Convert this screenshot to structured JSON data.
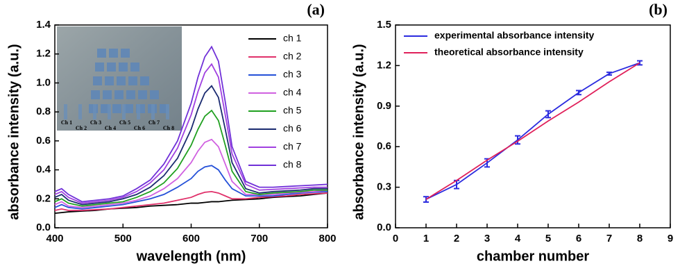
{
  "chart_data": [
    {
      "type": "line",
      "panel_label": "(a)",
      "x_label": "wavelength (nm)",
      "y_label": "absorbance intensity (a.u.)",
      "xlim": [
        400,
        800
      ],
      "ylim": [
        0,
        1.4
      ],
      "xticks": [
        400,
        500,
        600,
        700,
        800
      ],
      "yticks": [
        {
          "value": 0,
          "label": "0.0"
        },
        {
          "value": 0.2,
          "label": "0.2"
        },
        {
          "value": 0.4,
          "label": "0.4"
        },
        {
          "value": 0.6,
          "label": "0.6"
        },
        {
          "value": 0.8,
          "label": "0.8"
        },
        {
          "value": 1,
          "label": "1.0"
        },
        {
          "value": 1.2,
          "label": "1.2"
        },
        {
          "value": 1.4,
          "label": "1.4"
        }
      ],
      "inset_labels": [
        "Ch 1",
        "Ch 2",
        "Ch 3",
        "Ch 4",
        "Ch 5",
        "Ch 6",
        "Ch 7",
        "Ch 8"
      ],
      "x": [
        400,
        410,
        420,
        440,
        460,
        480,
        500,
        520,
        540,
        560,
        580,
        600,
        610,
        620,
        630,
        640,
        650,
        660,
        680,
        700,
        720,
        740,
        760,
        780,
        800
      ],
      "series": [
        {
          "name": "ch 1",
          "color": "#000000",
          "values": [
            0.1,
            0.105,
            0.11,
            0.115,
            0.12,
            0.13,
            0.135,
            0.14,
            0.15,
            0.155,
            0.16,
            0.17,
            0.17,
            0.175,
            0.18,
            0.18,
            0.185,
            0.19,
            0.195,
            0.2,
            0.21,
            0.215,
            0.22,
            0.23,
            0.24
          ]
        },
        {
          "name": "ch 2",
          "color": "#e0306a",
          "values": [
            0.12,
            0.13,
            0.12,
            0.12,
            0.125,
            0.13,
            0.14,
            0.15,
            0.16,
            0.17,
            0.19,
            0.21,
            0.23,
            0.245,
            0.25,
            0.24,
            0.22,
            0.2,
            0.2,
            0.21,
            0.215,
            0.22,
            0.23,
            0.235,
            0.24
          ]
        },
        {
          "name": "ch 3",
          "color": "#2450d8",
          "values": [
            0.14,
            0.16,
            0.14,
            0.13,
            0.14,
            0.15,
            0.16,
            0.18,
            0.2,
            0.23,
            0.28,
            0.34,
            0.39,
            0.42,
            0.43,
            0.4,
            0.33,
            0.27,
            0.22,
            0.22,
            0.22,
            0.23,
            0.24,
            0.245,
            0.25
          ]
        },
        {
          "name": "ch 4",
          "color": "#d060e0",
          "values": [
            0.16,
            0.18,
            0.15,
            0.14,
            0.15,
            0.16,
            0.17,
            0.19,
            0.22,
            0.27,
            0.34,
            0.45,
            0.53,
            0.59,
            0.61,
            0.56,
            0.44,
            0.32,
            0.23,
            0.23,
            0.23,
            0.24,
            0.245,
            0.25,
            0.26
          ]
        },
        {
          "name": "ch 5",
          "color": "#20a020",
          "values": [
            0.18,
            0.2,
            0.17,
            0.15,
            0.16,
            0.17,
            0.18,
            0.21,
            0.25,
            0.31,
            0.41,
            0.57,
            0.68,
            0.77,
            0.81,
            0.74,
            0.57,
            0.39,
            0.25,
            0.23,
            0.24,
            0.245,
            0.25,
            0.26,
            0.26
          ]
        },
        {
          "name": "ch 6",
          "color": "#1a2a70",
          "values": [
            0.21,
            0.23,
            0.19,
            0.16,
            0.17,
            0.18,
            0.2,
            0.23,
            0.28,
            0.36,
            0.48,
            0.68,
            0.82,
            0.93,
            0.98,
            0.9,
            0.68,
            0.45,
            0.27,
            0.24,
            0.25,
            0.255,
            0.26,
            0.27,
            0.27
          ]
        },
        {
          "name": "ch 7",
          "color": "#a040e0",
          "values": [
            0.23,
            0.25,
            0.21,
            0.17,
            0.18,
            0.19,
            0.21,
            0.25,
            0.31,
            0.4,
            0.55,
            0.78,
            0.94,
            1.07,
            1.13,
            1.04,
            0.78,
            0.51,
            0.3,
            0.26,
            0.265,
            0.27,
            0.275,
            0.28,
            0.28
          ]
        },
        {
          "name": "ch 8",
          "color": "#7030d8",
          "values": [
            0.25,
            0.27,
            0.23,
            0.18,
            0.19,
            0.2,
            0.22,
            0.27,
            0.33,
            0.44,
            0.6,
            0.86,
            1.04,
            1.18,
            1.25,
            1.15,
            0.87,
            0.56,
            0.32,
            0.28,
            0.28,
            0.285,
            0.29,
            0.295,
            0.3
          ]
        }
      ]
    },
    {
      "type": "line",
      "panel_label": "(b)",
      "x_label": "chamber number",
      "y_label": "absorbance intensity (a.u.)",
      "xlim": [
        0,
        9
      ],
      "ylim": [
        0,
        1.5
      ],
      "xticks": [
        0,
        1,
        2,
        3,
        4,
        5,
        6,
        7,
        8,
        9
      ],
      "yticks": [
        {
          "value": 0,
          "label": "0.0"
        },
        {
          "value": 0.3,
          "label": "0.3"
        },
        {
          "value": 0.6,
          "label": "0.6"
        },
        {
          "value": 0.9,
          "label": "0.9"
        },
        {
          "value": 1.2,
          "label": "1.2"
        },
        {
          "value": 1.5,
          "label": "1.5"
        }
      ],
      "x": [
        1,
        2,
        3,
        4,
        5,
        6,
        7,
        8
      ],
      "series": [
        {
          "name": "experimental absorbance intensity",
          "color": "#2b2bdf",
          "values": [
            0.21,
            0.32,
            0.48,
            0.65,
            0.84,
            1.0,
            1.14,
            1.22
          ],
          "errors": [
            0.02,
            0.03,
            0.03,
            0.03,
            0.025,
            0.015,
            0.01,
            0.015
          ]
        },
        {
          "name": "theoretical absorbance intensity",
          "color": "#e0205a",
          "values": [
            0.21,
            0.35,
            0.5,
            0.64,
            0.79,
            0.93,
            1.08,
            1.22
          ]
        }
      ]
    }
  ]
}
